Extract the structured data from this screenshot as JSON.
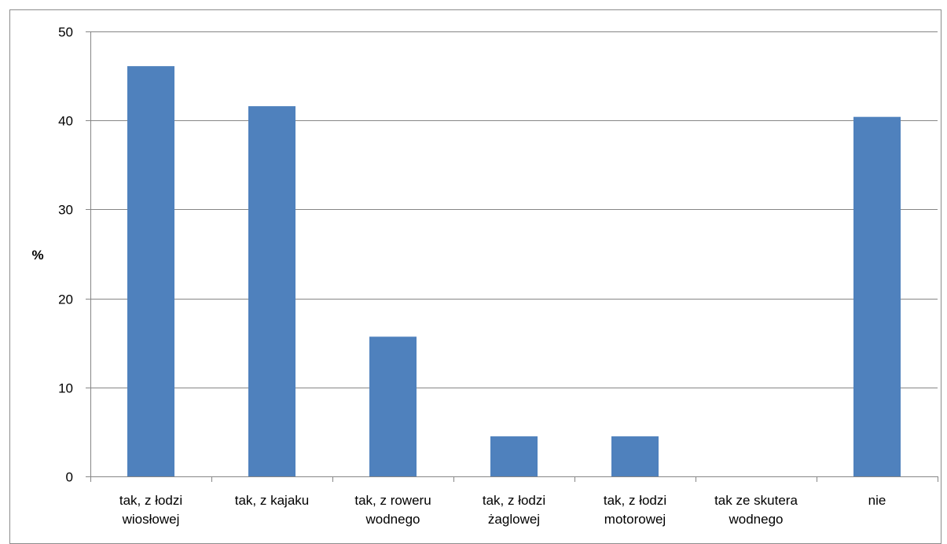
{
  "chart_data": {
    "type": "bar",
    "categories": [
      [
        "tak, z łodzi",
        "wiosłowej"
      ],
      [
        "tak, z kajaku"
      ],
      [
        "tak, z roweru",
        "wodnego"
      ],
      [
        "tak, z łodzi",
        "żaglowej"
      ],
      [
        "tak, z łodzi",
        "motorowej"
      ],
      [
        "tak ze skutera",
        "wodnego"
      ],
      [
        "nie"
      ]
    ],
    "values": [
      46.1,
      41.6,
      15.7,
      4.5,
      4.5,
      0,
      40.4
    ],
    "ylabel": "%",
    "ylim": [
      0,
      50
    ],
    "yticks": [
      0,
      10,
      20,
      30,
      40,
      50
    ],
    "grid": true,
    "legend": "none",
    "bar_color": "#4f81bd",
    "grid_color": "#868686"
  }
}
